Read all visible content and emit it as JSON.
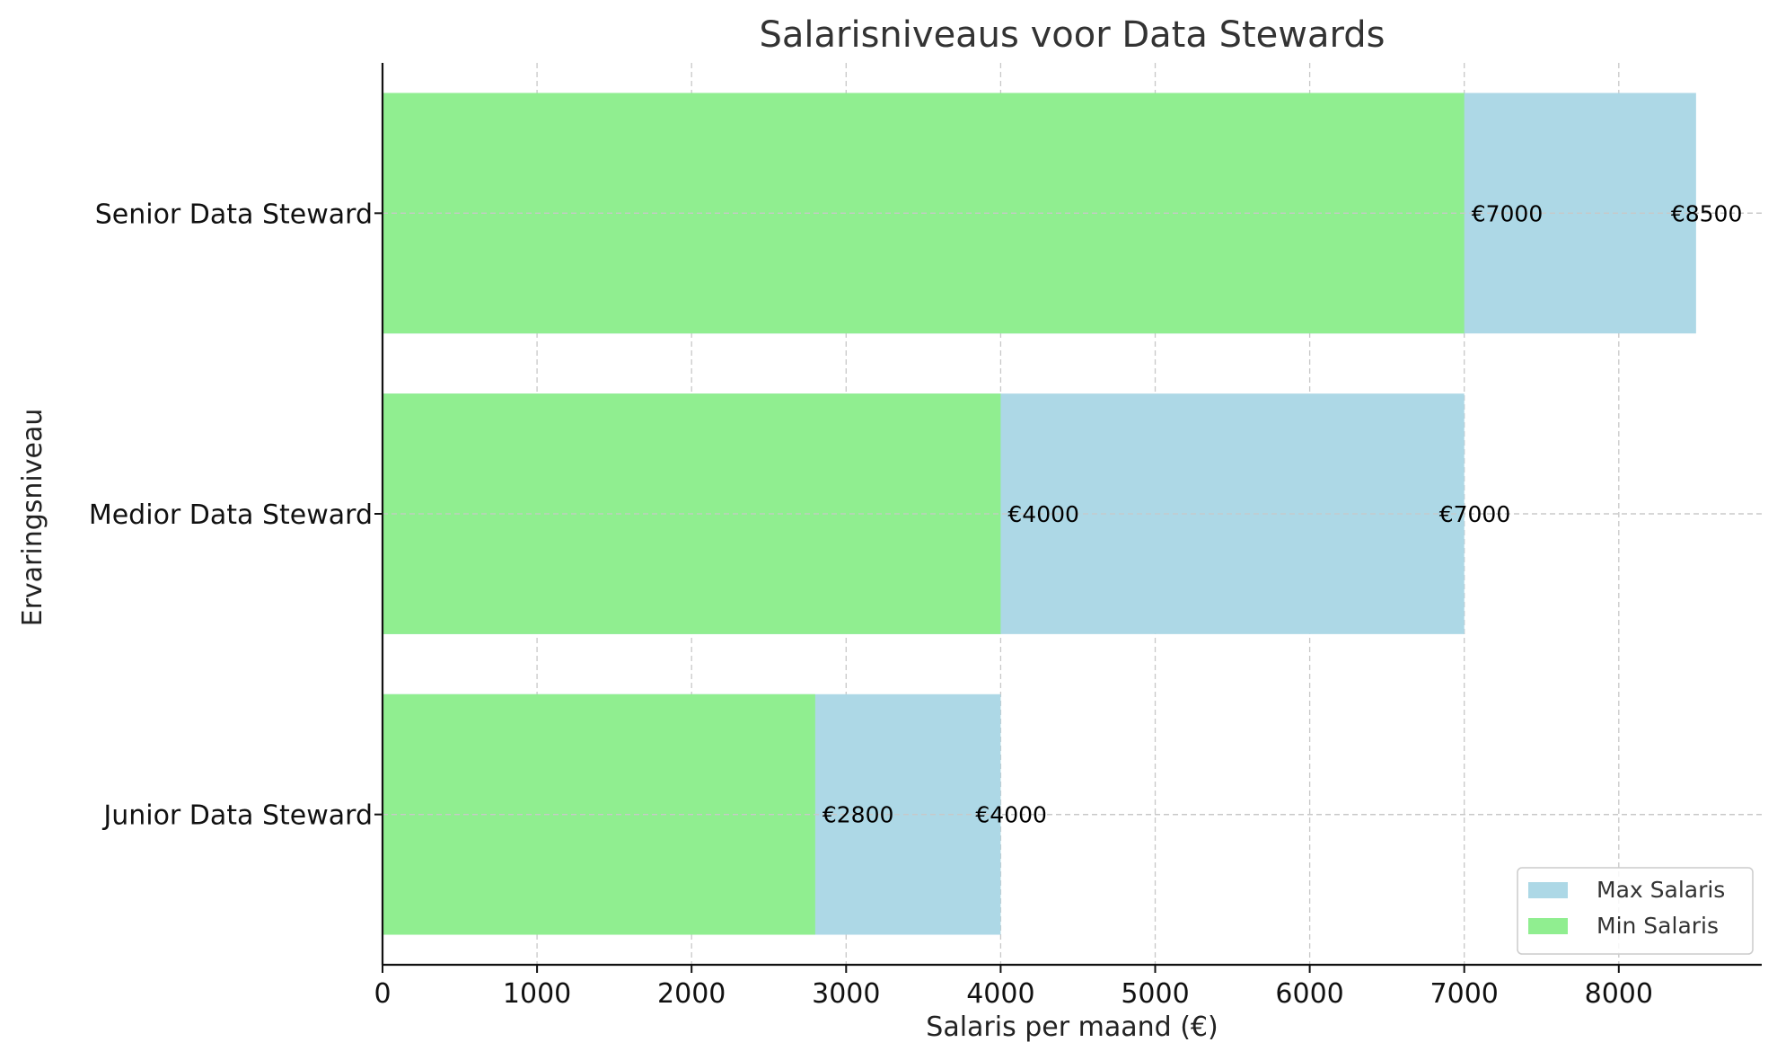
{
  "chart_data": {
    "type": "bar",
    "orientation": "horizontal",
    "title": "Salarisniveaus voor Data Stewards",
    "xlabel": "Salaris per maand (€)",
    "ylabel": "Ervaringsniveau",
    "categories": [
      "Junior Data Steward",
      "Medior Data Steward",
      "Senior Data Steward"
    ],
    "series": [
      {
        "name": "Max Salaris",
        "values": [
          4000,
          7000,
          8500
        ],
        "color": "#add8e6"
      },
      {
        "name": "Min Salaris",
        "values": [
          2800,
          4000,
          7000
        ],
        "color": "#90ee90"
      }
    ],
    "data_labels": {
      "Max Salaris": [
        "€4000",
        "€7000",
        "€8500"
      ],
      "Min Salaris": [
        "€2800",
        "€4000",
        "€7000"
      ]
    },
    "xlim": [
      0,
      8925
    ],
    "xticks": [
      0,
      1000,
      2000,
      3000,
      4000,
      5000,
      6000,
      7000,
      8000
    ],
    "grid": true,
    "legend_position": "lower-right"
  }
}
